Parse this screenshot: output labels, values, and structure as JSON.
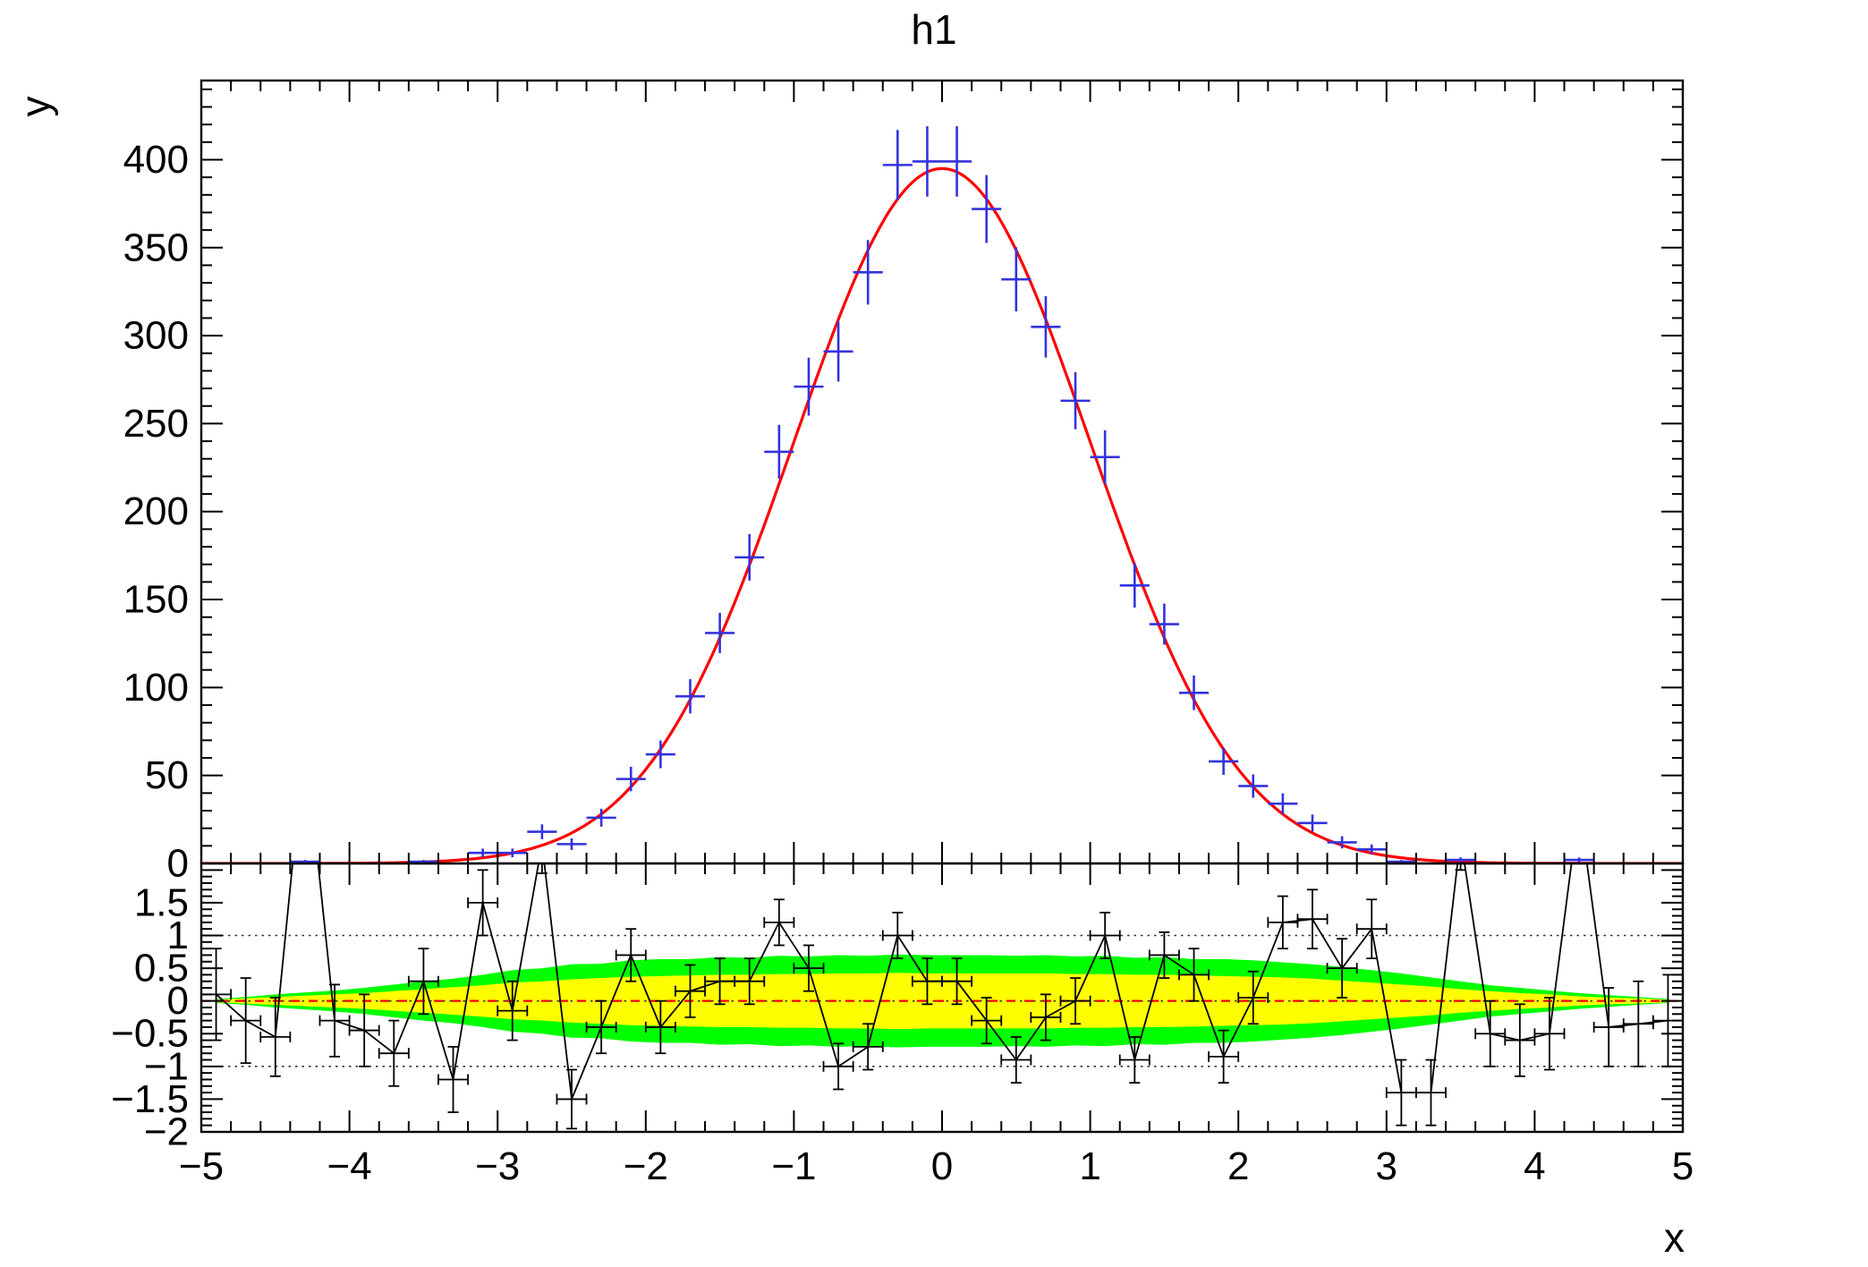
{
  "colors": {
    "background": "#ffffff",
    "frame": "#000000",
    "fit_line": "#ff0000",
    "data_marker": "#3333dd",
    "pull_marker": "#000000",
    "band_outer": "#00ff00",
    "band_inner": "#ffff00",
    "gridline": "#333333",
    "zero_line": "#ff0000"
  },
  "axes": {
    "x_tick_labels": [
      "−5",
      "−4",
      "−3",
      "−2",
      "−1",
      "0",
      "1",
      "2",
      "3",
      "4",
      "5"
    ],
    "top_y_tick_labels": [
      "0",
      "50",
      "100",
      "150",
      "200",
      "250",
      "300",
      "350",
      "400"
    ],
    "bottom_y_tick_labels": [
      "−2",
      "−1.5",
      "−1",
      "−0.5",
      "0",
      "0.5",
      "1",
      "1.5"
    ]
  },
  "chart_data": {
    "type": "histogram-with-gaussian-fit-and-pull-panel",
    "title": "h1",
    "xlabel": "x",
    "ylabel": "y",
    "x_tick_values": [
      -5,
      -4,
      -3,
      -2,
      -1,
      0,
      1,
      2,
      3,
      4,
      5
    ],
    "top": {
      "xlim": [
        -5,
        5
      ],
      "ylim": [
        0,
        445
      ],
      "y_tick_values": [
        0,
        50,
        100,
        150,
        200,
        250,
        300,
        350,
        400
      ],
      "bin_width": 0.2,
      "bin_centers": [
        -4.9,
        -4.7,
        -4.5,
        -4.3,
        -4.1,
        -3.9,
        -3.7,
        -3.5,
        -3.3,
        -3.1,
        -2.9,
        -2.7,
        -2.5,
        -2.3,
        -2.1,
        -1.9,
        -1.7,
        -1.5,
        -1.3,
        -1.1,
        -0.9,
        -0.7,
        -0.5,
        -0.3,
        -0.1,
        0.1,
        0.3,
        0.5,
        0.7,
        0.9,
        1.1,
        1.3,
        1.5,
        1.7,
        1.9,
        2.1,
        2.3,
        2.5,
        2.7,
        2.9,
        3.1,
        3.3,
        3.5,
        3.7,
        3.9,
        4.1,
        4.3,
        4.5,
        4.7,
        4.9
      ],
      "counts": [
        0,
        0,
        0,
        1,
        0,
        0,
        0,
        1,
        0,
        6,
        6,
        18,
        11,
        26,
        48,
        62,
        95,
        131,
        174,
        234,
        271,
        291,
        336,
        397,
        399,
        399,
        372,
        332,
        305,
        263,
        231,
        158,
        136,
        97,
        58,
        44,
        34,
        23,
        12,
        8,
        1,
        0,
        2,
        0,
        0,
        0,
        2,
        0,
        0,
        0
      ],
      "fit": {
        "type": "gaussian",
        "amplitude": 395,
        "mean": 0,
        "sigma": 1.0
      }
    },
    "bottom": {
      "xlim": [
        -5,
        5
      ],
      "ylim": [
        -2,
        2.1
      ],
      "y_tick_values": [
        -2,
        -1.5,
        -1,
        -0.5,
        0,
        0.5,
        1,
        1.5
      ],
      "hlines": [
        -1,
        0,
        1
      ],
      "pulls": [
        0.1,
        -0.3,
        -0.55,
        4.0,
        -0.3,
        -0.45,
        -0.8,
        0.3,
        -1.2,
        1.5,
        -0.15,
        2.4,
        -1.5,
        -0.4,
        0.7,
        -0.4,
        0.15,
        0.3,
        0.3,
        1.2,
        0.5,
        -1.0,
        -0.7,
        1.0,
        0.3,
        0.3,
        -0.3,
        -0.9,
        -0.25,
        0.0,
        1.0,
        -0.9,
        0.7,
        0.4,
        -0.85,
        0.05,
        1.2,
        1.25,
        0.5,
        1.1,
        -1.4,
        -1.4,
        2.5,
        -0.5,
        -0.6,
        -0.5,
        3.0,
        -0.4,
        -0.35,
        -0.3
      ],
      "pull_errors": [
        0.7,
        0.65,
        0.6,
        0.6,
        0.55,
        0.55,
        0.5,
        0.5,
        0.5,
        0.5,
        0.45,
        0.45,
        0.45,
        0.4,
        0.4,
        0.4,
        0.4,
        0.35,
        0.35,
        0.35,
        0.35,
        0.35,
        0.35,
        0.35,
        0.35,
        0.35,
        0.35,
        0.35,
        0.35,
        0.35,
        0.35,
        0.35,
        0.35,
        0.4,
        0.4,
        0.4,
        0.4,
        0.45,
        0.45,
        0.45,
        0.5,
        0.5,
        0.5,
        0.5,
        0.55,
        0.55,
        0.6,
        0.6,
        0.65,
        0.7
      ],
      "pull_x_halfwidth": 0.1,
      "band_outer_halfwidth": [
        0.03,
        0.06,
        0.1,
        0.13,
        0.16,
        0.2,
        0.25,
        0.3,
        0.34,
        0.4,
        0.47,
        0.5,
        0.56,
        0.57,
        0.62,
        0.64,
        0.64,
        0.67,
        0.66,
        0.69,
        0.68,
        0.7,
        0.69,
        0.71,
        0.7,
        0.7,
        0.7,
        0.69,
        0.7,
        0.68,
        0.69,
        0.66,
        0.67,
        0.64,
        0.64,
        0.62,
        0.59,
        0.56,
        0.52,
        0.47,
        0.42,
        0.36,
        0.3,
        0.24,
        0.2,
        0.16,
        0.12,
        0.09,
        0.06,
        0.03
      ],
      "band_inner_halfwidth": [
        0.02,
        0.04,
        0.06,
        0.08,
        0.1,
        0.12,
        0.15,
        0.18,
        0.21,
        0.24,
        0.28,
        0.3,
        0.33,
        0.35,
        0.37,
        0.38,
        0.39,
        0.4,
        0.4,
        0.41,
        0.41,
        0.42,
        0.42,
        0.43,
        0.42,
        0.42,
        0.42,
        0.42,
        0.42,
        0.41,
        0.41,
        0.4,
        0.4,
        0.39,
        0.38,
        0.37,
        0.36,
        0.34,
        0.31,
        0.28,
        0.25,
        0.22,
        0.18,
        0.15,
        0.12,
        0.1,
        0.07,
        0.05,
        0.04,
        0.02
      ]
    }
  }
}
